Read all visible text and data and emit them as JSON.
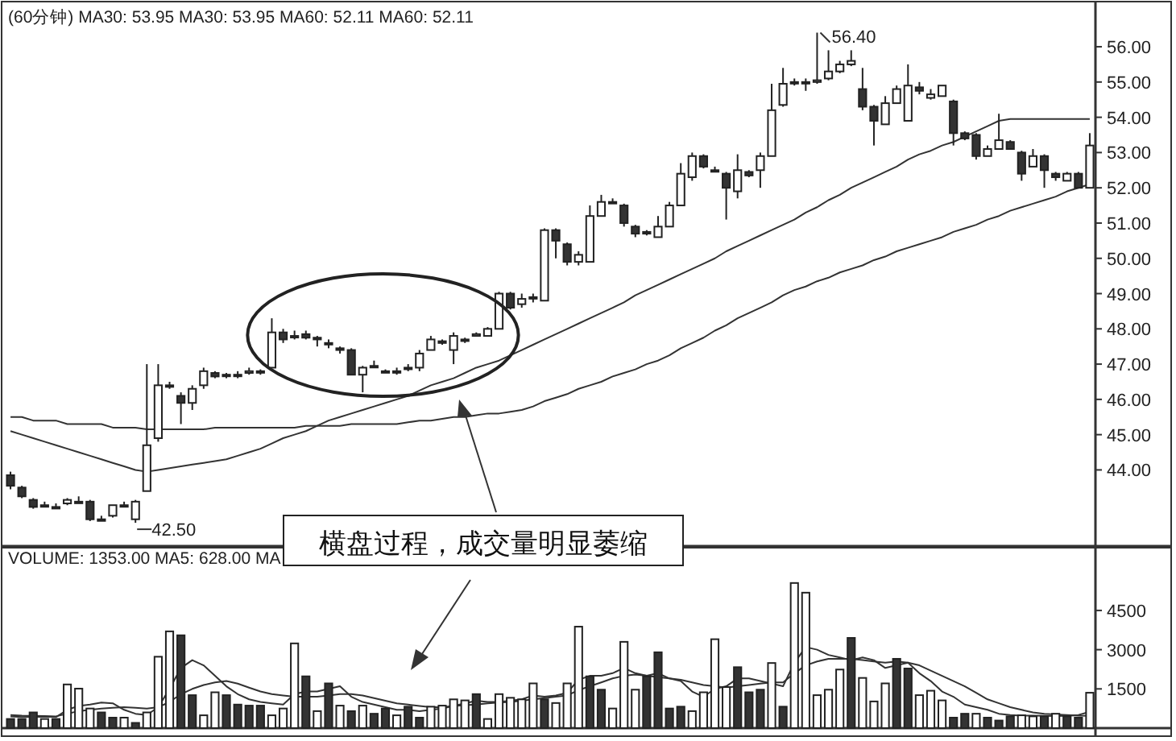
{
  "chart_data": [
    {
      "type": "candlestick",
      "title": "(60分钟) MA30: 53.95 MA30: 53.95 MA60: 52.11 MA60: 52.11",
      "categories": [
        null,
        null,
        null,
        null,
        null,
        null,
        null,
        null,
        null,
        null,
        null,
        null,
        null,
        null,
        null,
        null,
        null,
        null,
        null,
        null,
        null,
        null,
        null,
        null,
        null,
        null,
        null,
        null,
        null,
        null,
        null,
        null,
        null,
        null,
        null,
        null,
        null,
        null,
        null,
        null,
        null,
        null,
        null,
        null,
        null,
        null,
        null,
        null,
        null,
        null,
        null,
        null,
        null,
        null,
        null,
        null,
        null,
        null,
        null,
        null,
        null,
        null,
        null,
        null,
        null,
        null,
        null,
        null,
        null,
        null,
        null,
        null,
        null,
        null,
        null,
        null,
        null,
        null,
        null,
        null,
        null,
        null,
        null,
        null,
        null,
        null,
        null,
        null,
        null,
        null,
        null,
        null,
        null,
        null,
        null,
        null
      ],
      "ohlc": [
        [
          43.85,
          43.95,
          43.45,
          43.55
        ],
        [
          43.5,
          43.55,
          43.2,
          43.25
        ],
        [
          43.15,
          43.2,
          42.9,
          42.95
        ],
        [
          43.0,
          43.1,
          42.95,
          43.0
        ],
        [
          42.95,
          43.05,
          42.9,
          42.95
        ],
        [
          43.05,
          43.2,
          43.0,
          43.15
        ],
        [
          43.1,
          43.25,
          43.05,
          43.1
        ],
        [
          43.1,
          43.15,
          42.55,
          42.6
        ],
        [
          42.6,
          42.7,
          42.55,
          42.6
        ],
        [
          42.7,
          43.0,
          42.65,
          43.0
        ],
        [
          43.0,
          43.1,
          42.95,
          43.0
        ],
        [
          42.6,
          43.15,
          42.5,
          43.1
        ],
        [
          43.4,
          47.0,
          43.4,
          44.7
        ],
        [
          44.9,
          47.0,
          44.8,
          46.4
        ],
        [
          46.4,
          46.5,
          46.3,
          46.4
        ],
        [
          46.1,
          46.2,
          45.3,
          45.9
        ],
        [
          45.9,
          46.4,
          45.7,
          46.3
        ],
        [
          46.4,
          46.9,
          46.3,
          46.8
        ],
        [
          46.75,
          46.8,
          46.6,
          46.65
        ],
        [
          46.7,
          46.75,
          46.6,
          46.7
        ],
        [
          46.7,
          46.8,
          46.6,
          46.7
        ],
        [
          46.75,
          46.9,
          46.7,
          46.8
        ],
        [
          46.8,
          46.85,
          46.7,
          46.8
        ],
        [
          46.9,
          48.3,
          46.9,
          47.9
        ],
        [
          47.9,
          48.0,
          47.6,
          47.7
        ],
        [
          47.8,
          47.95,
          47.7,
          47.8
        ],
        [
          47.85,
          47.95,
          47.7,
          47.75
        ],
        [
          47.75,
          47.8,
          47.5,
          47.7
        ],
        [
          47.6,
          47.7,
          47.45,
          47.6
        ],
        [
          47.45,
          47.5,
          47.3,
          47.4
        ],
        [
          47.4,
          47.45,
          46.7,
          46.7
        ],
        [
          46.7,
          46.95,
          46.2,
          46.9
        ],
        [
          46.95,
          47.1,
          46.9,
          46.95
        ],
        [
          46.8,
          46.85,
          46.75,
          46.8
        ],
        [
          46.8,
          46.9,
          46.7,
          46.8
        ],
        [
          46.9,
          47.0,
          46.8,
          46.9
        ],
        [
          46.9,
          47.4,
          46.8,
          47.3
        ],
        [
          47.4,
          47.8,
          47.4,
          47.7
        ],
        [
          47.65,
          47.7,
          47.55,
          47.6
        ],
        [
          47.4,
          47.9,
          47.0,
          47.8
        ],
        [
          47.7,
          47.75,
          47.6,
          47.7
        ],
        [
          47.8,
          47.9,
          47.8,
          47.85
        ],
        [
          47.8,
          48.05,
          47.8,
          48.0
        ],
        [
          48.0,
          49.05,
          48.0,
          49.0
        ],
        [
          49.0,
          49.05,
          48.55,
          48.6
        ],
        [
          48.7,
          49.0,
          48.6,
          48.85
        ],
        [
          48.9,
          49.0,
          48.75,
          48.9
        ],
        [
          48.8,
          50.85,
          48.8,
          50.8
        ],
        [
          50.8,
          50.85,
          50.0,
          50.5
        ],
        [
          50.4,
          50.45,
          49.8,
          49.9
        ],
        [
          49.9,
          50.2,
          49.8,
          50.1
        ],
        [
          49.9,
          51.5,
          49.9,
          51.2
        ],
        [
          51.2,
          51.8,
          51.2,
          51.6
        ],
        [
          51.6,
          51.7,
          51.55,
          51.6
        ],
        [
          51.5,
          51.55,
          50.9,
          51.0
        ],
        [
          50.9,
          50.95,
          50.6,
          50.7
        ],
        [
          50.75,
          50.8,
          50.65,
          50.7
        ],
        [
          50.6,
          51.2,
          50.6,
          50.9
        ],
        [
          50.9,
          51.6,
          50.9,
          51.5
        ],
        [
          51.5,
          52.7,
          51.5,
          52.4
        ],
        [
          52.3,
          53.0,
          52.2,
          52.9
        ],
        [
          52.9,
          52.95,
          52.55,
          52.6
        ],
        [
          52.5,
          52.6,
          52.45,
          52.5
        ],
        [
          52.4,
          52.45,
          51.1,
          52.0
        ],
        [
          51.9,
          52.95,
          51.7,
          52.5
        ],
        [
          52.45,
          52.5,
          52.3,
          52.35
        ],
        [
          52.5,
          53.0,
          52.0,
          52.9
        ],
        [
          52.9,
          54.95,
          52.9,
          54.2
        ],
        [
          54.35,
          55.4,
          54.3,
          54.95
        ],
        [
          55.0,
          55.1,
          54.9,
          55.0
        ],
        [
          55.0,
          55.1,
          54.75,
          55.0
        ],
        [
          55.0,
          56.4,
          54.95,
          55.05
        ],
        [
          55.1,
          55.9,
          55.05,
          55.3
        ],
        [
          55.3,
          55.6,
          55.25,
          55.5
        ],
        [
          55.5,
          55.9,
          55.45,
          55.6
        ],
        [
          54.8,
          55.4,
          54.2,
          54.3
        ],
        [
          54.3,
          54.35,
          53.2,
          53.9
        ],
        [
          53.8,
          54.6,
          53.8,
          54.4
        ],
        [
          54.4,
          54.9,
          54.4,
          54.8
        ],
        [
          53.9,
          55.5,
          53.9,
          54.9
        ],
        [
          54.85,
          55.0,
          54.65,
          54.75
        ],
        [
          54.55,
          54.8,
          54.5,
          54.65
        ],
        [
          54.6,
          54.9,
          54.6,
          54.9
        ],
        [
          54.45,
          54.5,
          53.2,
          53.55
        ],
        [
          53.55,
          53.6,
          53.35,
          53.4
        ],
        [
          53.5,
          53.55,
          52.8,
          52.9
        ],
        [
          52.9,
          53.2,
          52.9,
          53.1
        ],
        [
          53.1,
          54.1,
          53.1,
          53.35
        ],
        [
          53.3,
          53.35,
          53.1,
          53.1
        ],
        [
          53.0,
          53.05,
          52.2,
          52.4
        ],
        [
          52.6,
          53.1,
          52.6,
          52.9
        ],
        [
          52.9,
          52.95,
          52.0,
          52.5
        ],
        [
          52.4,
          52.45,
          52.2,
          52.3
        ],
        [
          52.2,
          52.45,
          52.2,
          52.4
        ],
        [
          52.4,
          52.45,
          52.0,
          52.0
        ],
        [
          52.0,
          53.55,
          52.0,
          53.2
        ]
      ],
      "series": [
        {
          "type": "line",
          "color": "#333333",
          "values": [
            45.1,
            45.0,
            44.9,
            44.8,
            44.7,
            44.6,
            44.5,
            44.4,
            44.3,
            44.2,
            44.1,
            44.0,
            43.95,
            44.0,
            44.05,
            44.1,
            44.15,
            44.2,
            44.25,
            44.3,
            44.4,
            44.5,
            44.6,
            44.75,
            44.9,
            45.0,
            45.1,
            45.25,
            45.4,
            45.5,
            45.6,
            45.7,
            45.8,
            45.9,
            46.0,
            46.1,
            46.25,
            46.4,
            46.5,
            46.6,
            46.75,
            46.9,
            47.0,
            47.1,
            47.25,
            47.4,
            47.55,
            47.7,
            47.85,
            48.0,
            48.15,
            48.3,
            48.45,
            48.6,
            48.75,
            48.95,
            49.1,
            49.25,
            49.4,
            49.55,
            49.7,
            49.85,
            50.0,
            50.2,
            50.35,
            50.5,
            50.65,
            50.8,
            50.95,
            51.1,
            51.3,
            51.45,
            51.65,
            51.8,
            52.0,
            52.15,
            52.3,
            52.45,
            52.6,
            52.8,
            52.95,
            53.05,
            53.2,
            53.3,
            53.45,
            53.6,
            53.75,
            53.9,
            53.95,
            53.95,
            53.95,
            53.95,
            53.95,
            53.95,
            53.95,
            53.95
          ]
        },
        {
          "type": "line",
          "color": "#333333",
          "values": [
            45.5,
            45.5,
            45.4,
            45.4,
            45.4,
            45.3,
            45.3,
            45.3,
            45.3,
            45.2,
            45.2,
            45.2,
            45.15,
            45.15,
            45.15,
            45.15,
            45.15,
            45.15,
            45.2,
            45.2,
            45.2,
            45.2,
            45.2,
            45.2,
            45.2,
            45.2,
            45.25,
            45.25,
            45.25,
            45.25,
            45.3,
            45.3,
            45.3,
            45.3,
            45.3,
            45.35,
            45.4,
            45.4,
            45.45,
            45.5,
            45.5,
            45.55,
            45.6,
            45.6,
            45.65,
            45.7,
            45.8,
            45.95,
            46.05,
            46.15,
            46.3,
            46.4,
            46.5,
            46.65,
            46.75,
            46.85,
            47.0,
            47.1,
            47.25,
            47.45,
            47.6,
            47.75,
            47.95,
            48.1,
            48.3,
            48.45,
            48.6,
            48.75,
            48.95,
            49.1,
            49.2,
            49.35,
            49.45,
            49.6,
            49.7,
            49.8,
            49.95,
            50.05,
            50.2,
            50.3,
            50.4,
            50.5,
            50.6,
            50.75,
            50.85,
            50.95,
            51.1,
            51.2,
            51.35,
            51.45,
            51.55,
            51.65,
            51.75,
            51.9,
            52.0,
            52.1
          ]
        }
      ],
      "ylim": [
        41.84,
        57.28
      ],
      "yticks": [
        {
          "value": 44,
          "label": "44.00"
        },
        {
          "value": 45,
          "label": "45.00"
        },
        {
          "value": 46,
          "label": "46.00"
        },
        {
          "value": 47,
          "label": "47.00"
        },
        {
          "value": 48,
          "label": "48.00"
        },
        {
          "value": 49,
          "label": "49.00"
        },
        {
          "value": 50,
          "label": "50.00"
        },
        {
          "value": 51,
          "label": "51.00"
        },
        {
          "value": 52,
          "label": "52.00"
        },
        {
          "value": 53,
          "label": "53.00"
        },
        {
          "value": 54,
          "label": "54.00"
        },
        {
          "value": 55,
          "label": "55.00"
        },
        {
          "value": 56,
          "label": "56.00"
        }
      ],
      "annotations": [
        "56.40",
        "42.50",
        "横盘过程，成交量明显萎缩"
      ]
    },
    {
      "type": "bar",
      "title": "VOLUME: 1353.00 MA5: 628.00 MA",
      "categories": [
        null,
        null,
        null,
        null,
        null,
        null,
        null,
        null,
        null,
        null,
        null,
        null,
        null,
        null,
        null,
        null,
        null,
        null,
        null,
        null,
        null,
        null,
        null,
        null,
        null,
        null,
        null,
        null,
        null,
        null,
        null,
        null,
        null,
        null,
        null,
        null,
        null,
        null,
        null,
        null,
        null,
        null,
        null,
        null,
        null,
        null,
        null,
        null,
        null,
        null,
        null,
        null,
        null,
        null,
        null,
        null,
        null,
        null,
        null,
        null,
        null,
        null,
        null,
        null,
        null,
        null,
        null,
        null,
        null,
        null,
        null,
        null,
        null,
        null,
        null,
        null,
        null,
        null,
        null,
        null,
        null,
        null,
        null,
        null,
        null,
        null,
        null,
        null,
        null,
        null,
        null,
        null,
        null,
        null,
        null,
        null
      ],
      "values": [
        350,
        350,
        600,
        350,
        350,
        1670,
        1510,
        750,
        600,
        400,
        400,
        200,
        600,
        2730,
        3700,
        3550,
        1260,
        490,
        1370,
        1260,
        900,
        860,
        860,
        490,
        750,
        3240,
        1980,
        650,
        1710,
        860,
        650,
        860,
        550,
        750,
        490,
        820,
        400,
        820,
        860,
        1100,
        1060,
        1300,
        350,
        1300,
        1160,
        1100,
        1710,
        1100,
        960,
        1710,
        3880,
        1980,
        1470,
        750,
        3300,
        1470,
        1980,
        2900,
        750,
        820,
        650,
        1370,
        3400,
        1570,
        2330,
        1370,
        1470,
        2490,
        820,
        5550,
        5180,
        1260,
        1470,
        2240,
        3450,
        1920,
        1020,
        1710,
        2650,
        2280,
        1260,
        1430,
        1060,
        400,
        550,
        550,
        400,
        290,
        450,
        490,
        450,
        450,
        550,
        450,
        400,
        1353
      ],
      "colors": [
        "#333333",
        "#333333",
        "#333333",
        "#ffffff",
        "#333333",
        "#ffffff",
        "#ffffff",
        "#ffffff",
        "#333333",
        "#333333",
        "#ffffff",
        "#333333",
        "#ffffff",
        "#ffffff",
        "#ffffff",
        "#333333",
        "#333333",
        "#ffffff",
        "#ffffff",
        "#333333",
        "#333333",
        "#333333",
        "#333333",
        "#ffffff",
        "#ffffff",
        "#ffffff",
        "#333333",
        "#ffffff",
        "#333333",
        "#ffffff",
        "#333333",
        "#ffffff",
        "#333333",
        "#333333",
        "#ffffff",
        "#333333",
        "#333333",
        "#ffffff",
        "#ffffff",
        "#ffffff",
        "#ffffff",
        "#333333",
        "#ffffff",
        "#ffffff",
        "#ffffff",
        "#ffffff",
        "#ffffff",
        "#333333",
        "#ffffff",
        "#ffffff",
        "#ffffff",
        "#333333",
        "#333333",
        "#ffffff",
        "#ffffff",
        "#ffffff",
        "#333333",
        "#333333",
        "#333333",
        "#333333",
        "#ffffff",
        "#ffffff",
        "#ffffff",
        "#ffffff",
        "#333333",
        "#333333",
        "#333333",
        "#ffffff",
        "#333333",
        "#ffffff",
        "#ffffff",
        "#ffffff",
        "#ffffff",
        "#ffffff",
        "#333333",
        "#ffffff",
        "#ffffff",
        "#ffffff",
        "#333333",
        "#333333",
        "#ffffff",
        "#ffffff",
        "#ffffff",
        "#333333",
        "#333333",
        "#ffffff",
        "#333333",
        "#333333",
        "#333333",
        "#ffffff",
        "#ffffff",
        "#333333",
        "#ffffff",
        "#333333",
        "#333333",
        "#ffffff"
      ],
      "series": [
        {
          "type": "line",
          "color": "#333333",
          "values": [
            450,
            420,
            430,
            440,
            420,
            700,
            850,
            900,
            980,
            950,
            700,
            550,
            500,
            800,
            1500,
            2300,
            2600,
            2400,
            2000,
            1600,
            1300,
            1100,
            1000,
            950,
            900,
            1300,
            1400,
            1400,
            1500,
            1600,
            1200,
            1000,
            900,
            800,
            700,
            700,
            650,
            700,
            750,
            850,
            950,
            1050,
            1000,
            1000,
            1050,
            1100,
            1250,
            1200,
            1250,
            1350,
            1850,
            2000,
            2000,
            2100,
            2300,
            2100,
            2000,
            2100,
            1900,
            1800,
            1400,
            1200,
            1500,
            1600,
            1900,
            1900,
            1800,
            1700,
            1600,
            2500,
            3100,
            3000,
            2800,
            2700,
            2600,
            2700,
            2600,
            2300,
            2400,
            2500,
            2100,
            1800,
            1400,
            1200,
            900,
            800,
            700,
            550,
            500,
            480,
            480,
            470,
            460,
            470,
            500,
            628
          ]
        },
        {
          "type": "line",
          "color": "#333333",
          "values": [
            500,
            480,
            470,
            460,
            450,
            550,
            650,
            700,
            750,
            780,
            800,
            780,
            750,
            800,
            1000,
            1300,
            1500,
            1650,
            1750,
            1800,
            1700,
            1550,
            1400,
            1300,
            1250,
            1200,
            1200,
            1200,
            1250,
            1300,
            1300,
            1250,
            1150,
            1050,
            950,
            900,
            850,
            800,
            800,
            850,
            880,
            900,
            950,
            980,
            1000,
            1050,
            1100,
            1150,
            1200,
            1250,
            1450,
            1600,
            1750,
            1900,
            2000,
            2050,
            2000,
            1950,
            1900,
            1850,
            1750,
            1650,
            1600,
            1550,
            1600,
            1650,
            1700,
            1750,
            1750,
            2100,
            2400,
            2550,
            2650,
            2650,
            2650,
            2600,
            2550,
            2500,
            2550,
            2500,
            2400,
            2200,
            2000,
            1800,
            1600,
            1350,
            1100,
            950,
            800,
            700,
            600,
            550,
            520,
            500,
            480,
            470
          ]
        }
      ],
      "ylim": [
        0,
        6900
      ],
      "yticks": [
        1500,
        3000,
        4500
      ]
    }
  ]
}
